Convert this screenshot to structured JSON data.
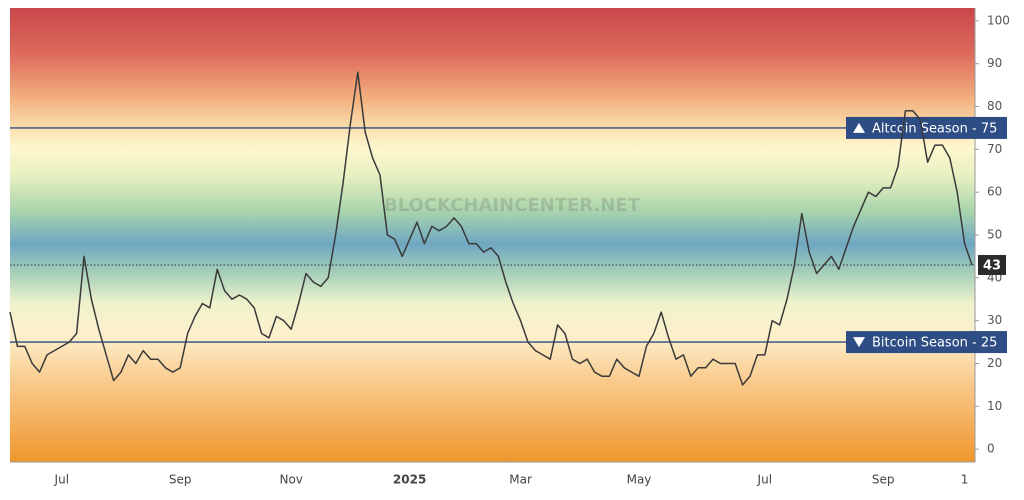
{
  "chart_data": {
    "type": "line",
    "watermark": "BLOCKCHAINCENTER.NET",
    "categories": [
      null,
      null,
      null,
      null,
      null,
      null,
      null,
      "Jul",
      null,
      null,
      null,
      null,
      null,
      null,
      null,
      null,
      null,
      null,
      null,
      null,
      null,
      null,
      null,
      "Sep",
      null,
      null,
      null,
      null,
      null,
      null,
      null,
      null,
      null,
      null,
      null,
      null,
      null,
      null,
      "Nov",
      null,
      null,
      null,
      null,
      null,
      null,
      null,
      null,
      null,
      null,
      null,
      null,
      null,
      null,
      null,
      "2025",
      null,
      null,
      null,
      null,
      null,
      null,
      null,
      null,
      null,
      null,
      null,
      null,
      null,
      null,
      "Mar",
      null,
      null,
      null,
      null,
      null,
      null,
      null,
      null,
      null,
      null,
      null,
      null,
      null,
      null,
      null,
      "May",
      null,
      null,
      null,
      null,
      null,
      null,
      null,
      null,
      null,
      null,
      null,
      null,
      null,
      null,
      null,
      null,
      "Jul",
      null,
      null,
      null,
      null,
      null,
      null,
      null,
      null,
      null,
      null,
      null,
      null,
      null,
      null,
      null,
      "Sep",
      null,
      null,
      null,
      null,
      null,
      null,
      null,
      null,
      null,
      null,
      "1",
      null
    ],
    "values": [
      32,
      24,
      24,
      20,
      18,
      22,
      23,
      24,
      25,
      27,
      45,
      35,
      28,
      22,
      16,
      18,
      22,
      20,
      23,
      21,
      21,
      19,
      18,
      19,
      27,
      31,
      34,
      33,
      42,
      37,
      35,
      36,
      35,
      33,
      27,
      26,
      31,
      30,
      28,
      34,
      41,
      39,
      38,
      40,
      50,
      62,
      76,
      88,
      74,
      68,
      64,
      50,
      49,
      45,
      49,
      53,
      48,
      52,
      51,
      52,
      54,
      52,
      48,
      48,
      46,
      47,
      45,
      39,
      34,
      30,
      25,
      23,
      22,
      21,
      29,
      27,
      21,
      20,
      21,
      18,
      17,
      17,
      21,
      19,
      18,
      17,
      24,
      27,
      32,
      26,
      21,
      22,
      17,
      19,
      19,
      21,
      20,
      20,
      20,
      15,
      17,
      22,
      22,
      30,
      29,
      35,
      43,
      55,
      46,
      41,
      43,
      45,
      42,
      47,
      52,
      56,
      60,
      59,
      61,
      61,
      66,
      79,
      79,
      77,
      67,
      71,
      71,
      68,
      60,
      48,
      43
    ],
    "color": "#3a3a3a",
    "ylim": [
      -3,
      103
    ],
    "yticks": [
      0,
      10,
      20,
      30,
      40,
      50,
      60,
      70,
      80,
      90,
      100
    ],
    "reference_lines": [
      {
        "label": "Altcoin Season - 75",
        "value": 75,
        "direction": "up",
        "color": "#2e4d84"
      },
      {
        "label": "Bitcoin Season - 25",
        "value": 25,
        "direction": "down",
        "color": "#2e4d84"
      }
    ]
  }
}
